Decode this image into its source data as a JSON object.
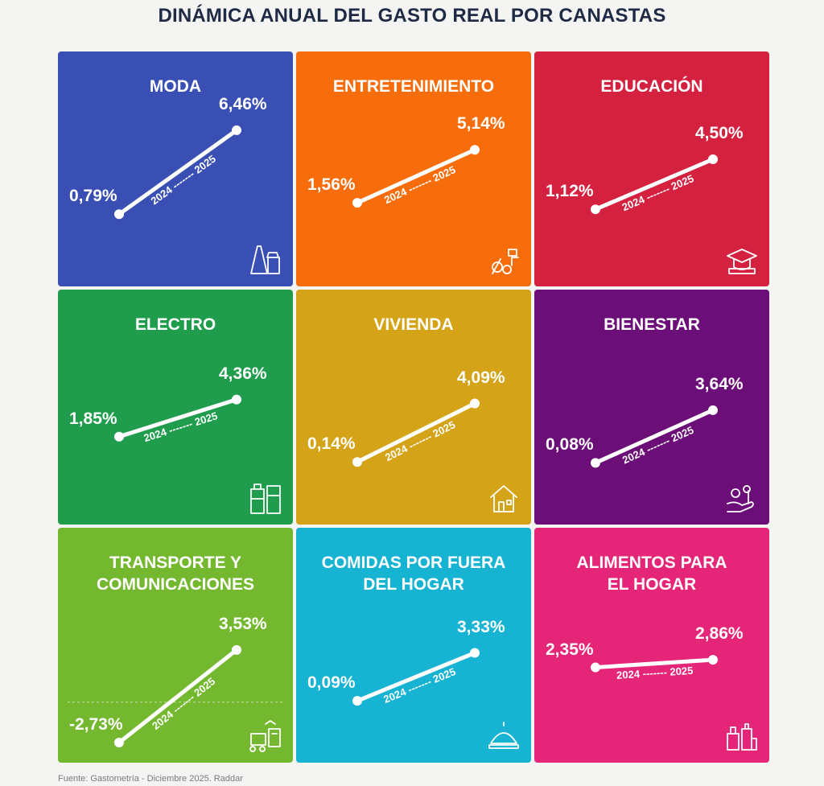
{
  "title": "DINÁMICA ANUAL DEL GASTO REAL POR CANASTAS",
  "source": "Fuente: Gastometría - Diciembre 2025. Raddar",
  "colors": {
    "moda": "#3a4fb4",
    "entretenimiento": "#f76d0c",
    "educacion": "#d4213f",
    "electro": "#1f9d4c",
    "vivienda": "#d4a317",
    "bienestar": "#6b0e78",
    "transporte": "#74b82f",
    "comidas": "#16b3d2",
    "alimentos": "#e52577"
  },
  "chart_data": {
    "type": "line",
    "x": [
      "2024",
      "2025"
    ],
    "value_range": [
      -3,
      7
    ],
    "panels": [
      {
        "key": "moda",
        "title_lines": [
          "MODA"
        ],
        "values": [
          0.79,
          6.46
        ],
        "labels": [
          "0,79%",
          "6,46%"
        ],
        "icon": "dress-icon"
      },
      {
        "key": "entretenimiento",
        "title_lines": [
          "ENTRETENIMIENTO"
        ],
        "values": [
          1.56,
          5.14
        ],
        "labels": [
          "1,56%",
          "5,14%"
        ],
        "icon": "entertainment-icon"
      },
      {
        "key": "educacion",
        "title_lines": [
          "EDUCACIÓN"
        ],
        "values": [
          1.12,
          4.5
        ],
        "labels": [
          "1,12%",
          "4,50%"
        ],
        "icon": "graduation-cap-icon"
      },
      {
        "key": "electro",
        "title_lines": [
          "ELECTRO"
        ],
        "values": [
          1.85,
          4.36
        ],
        "labels": [
          "1,85%",
          "4,36%"
        ],
        "icon": "appliances-icon"
      },
      {
        "key": "vivienda",
        "title_lines": [
          "VIVIENDA"
        ],
        "values": [
          0.14,
          4.09
        ],
        "labels": [
          "0,14%",
          "4,09%"
        ],
        "icon": "house-icon"
      },
      {
        "key": "bienestar",
        "title_lines": [
          "BIENESTAR"
        ],
        "values": [
          0.08,
          3.64
        ],
        "labels": [
          "0,08%",
          "3,64%"
        ],
        "icon": "wellness-icon"
      },
      {
        "key": "transporte",
        "title_lines": [
          "TRANSPORTE Y",
          "COMUNICACIONES"
        ],
        "values": [
          -2.73,
          3.53
        ],
        "labels": [
          "-2,73%",
          "3,53%"
        ],
        "icon": "transport-icon"
      },
      {
        "key": "comidas",
        "title_lines": [
          "COMIDAS POR FUERA",
          "DEL HOGAR"
        ],
        "values": [
          0.09,
          3.33
        ],
        "labels": [
          "0,09%",
          "3,33%"
        ],
        "icon": "cloche-icon"
      },
      {
        "key": "alimentos",
        "title_lines": [
          "ALIMENTOS PARA",
          "EL HOGAR"
        ],
        "values": [
          2.35,
          2.86
        ],
        "labels": [
          "2,35%",
          "2,86%"
        ],
        "icon": "groceries-icon"
      }
    ]
  }
}
